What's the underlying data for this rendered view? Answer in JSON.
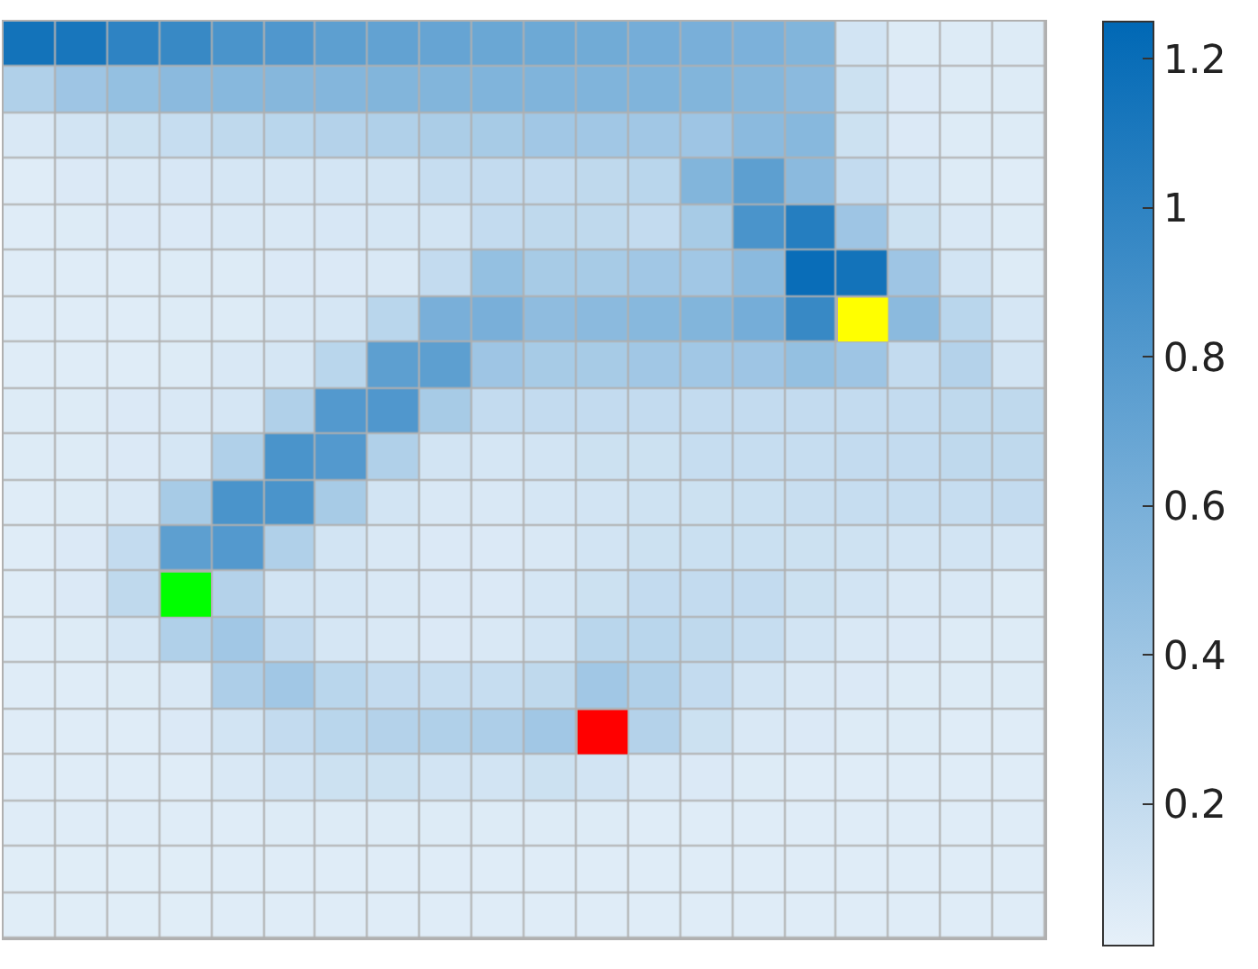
{
  "chart_data": {
    "type": "heatmap",
    "categories": [
      null,
      null,
      null,
      null,
      null,
      null,
      null,
      null,
      null,
      null,
      null,
      null,
      null,
      null,
      null,
      null,
      null,
      null,
      null,
      null
    ],
    "y_categories": [
      null,
      null,
      null,
      null,
      null,
      null,
      null,
      null,
      null,
      null,
      null,
      null,
      null,
      null,
      null,
      null,
      null,
      null,
      null,
      null
    ],
    "clim": [
      0.01,
      1.25
    ],
    "cticks": [
      0.2,
      0.4,
      0.6,
      0.8,
      1,
      1.2
    ],
    "cells": [
      [
        1.15,
        1.12,
        1.0,
        0.95,
        0.85,
        0.82,
        0.75,
        0.72,
        0.7,
        0.68,
        0.66,
        0.64,
        0.62,
        0.6,
        0.58,
        0.55,
        0.12,
        0.06,
        0.06,
        0.06
      ],
      [
        0.3,
        0.4,
        0.45,
        0.5,
        0.52,
        0.53,
        0.54,
        0.55,
        0.55,
        0.56,
        0.56,
        0.56,
        0.56,
        0.55,
        0.53,
        0.5,
        0.15,
        0.07,
        0.06,
        0.06
      ],
      [
        0.08,
        0.12,
        0.15,
        0.18,
        0.22,
        0.25,
        0.28,
        0.3,
        0.33,
        0.35,
        0.38,
        0.38,
        0.38,
        0.4,
        0.5,
        0.52,
        0.15,
        0.07,
        0.06,
        0.06
      ],
      [
        0.05,
        0.07,
        0.08,
        0.09,
        0.1,
        0.1,
        0.11,
        0.12,
        0.18,
        0.2,
        0.2,
        0.22,
        0.25,
        0.55,
        0.75,
        0.5,
        0.2,
        0.1,
        0.06,
        0.05
      ],
      [
        0.05,
        0.06,
        0.07,
        0.07,
        0.08,
        0.08,
        0.09,
        0.1,
        0.12,
        0.2,
        0.22,
        0.22,
        0.2,
        0.35,
        0.85,
        1.05,
        0.4,
        0.15,
        0.08,
        0.06
      ],
      [
        0.05,
        0.05,
        0.05,
        0.06,
        0.06,
        0.07,
        0.07,
        0.08,
        0.2,
        0.45,
        0.35,
        0.35,
        0.38,
        0.38,
        0.5,
        1.2,
        1.15,
        0.4,
        0.12,
        0.06
      ],
      [
        0.05,
        0.05,
        0.05,
        0.06,
        0.06,
        0.08,
        0.1,
        0.25,
        0.6,
        0.6,
        0.48,
        0.5,
        0.52,
        0.55,
        0.62,
        0.95,
        null,
        0.5,
        0.25,
        0.1
      ],
      [
        0.05,
        0.05,
        0.05,
        0.06,
        0.08,
        0.1,
        0.25,
        0.75,
        0.75,
        0.4,
        0.35,
        0.35,
        0.38,
        0.38,
        0.4,
        0.45,
        0.4,
        0.2,
        0.28,
        0.12
      ],
      [
        0.06,
        0.06,
        0.07,
        0.08,
        0.1,
        0.3,
        0.8,
        0.82,
        0.35,
        0.2,
        0.2,
        0.2,
        0.2,
        0.2,
        0.2,
        0.2,
        0.2,
        0.2,
        0.22,
        0.22
      ],
      [
        0.06,
        0.06,
        0.07,
        0.1,
        0.3,
        0.85,
        0.8,
        0.3,
        0.12,
        0.1,
        0.12,
        0.15,
        0.15,
        0.18,
        0.18,
        0.18,
        0.2,
        0.2,
        0.22,
        0.22
      ],
      [
        0.05,
        0.06,
        0.08,
        0.35,
        0.85,
        0.85,
        0.35,
        0.12,
        0.08,
        0.08,
        0.1,
        0.12,
        0.14,
        0.15,
        0.16,
        0.17,
        0.18,
        0.18,
        0.18,
        0.2
      ],
      [
        0.05,
        0.07,
        0.2,
        0.75,
        0.8,
        0.3,
        0.12,
        0.08,
        0.07,
        0.07,
        0.08,
        0.12,
        0.15,
        0.16,
        0.16,
        0.15,
        0.14,
        0.12,
        0.12,
        0.1
      ],
      [
        0.05,
        0.07,
        0.22,
        null,
        0.28,
        0.12,
        0.1,
        0.08,
        0.07,
        0.07,
        0.1,
        0.15,
        0.2,
        0.2,
        0.2,
        0.15,
        0.12,
        0.08,
        0.08,
        0.06
      ],
      [
        0.05,
        0.06,
        0.1,
        0.3,
        0.38,
        0.2,
        0.1,
        0.08,
        0.07,
        0.08,
        0.12,
        0.25,
        0.25,
        0.22,
        0.18,
        0.12,
        0.08,
        0.07,
        0.06,
        0.06
      ],
      [
        0.05,
        0.05,
        0.06,
        0.08,
        0.32,
        0.38,
        0.25,
        0.2,
        0.18,
        0.18,
        0.22,
        0.38,
        0.3,
        0.2,
        0.12,
        0.08,
        0.07,
        0.06,
        0.06,
        0.06
      ],
      [
        0.05,
        0.05,
        0.05,
        0.07,
        0.12,
        0.2,
        0.25,
        0.28,
        0.3,
        0.32,
        0.38,
        null,
        0.28,
        0.15,
        0.08,
        0.07,
        0.06,
        0.06,
        0.05,
        0.05
      ],
      [
        0.05,
        0.05,
        0.05,
        0.05,
        0.08,
        0.12,
        0.15,
        0.15,
        0.12,
        0.12,
        0.15,
        0.12,
        0.08,
        0.07,
        0.06,
        0.05,
        0.05,
        0.05,
        0.05,
        0.05
      ],
      [
        0.05,
        0.05,
        0.05,
        0.05,
        0.05,
        0.06,
        0.06,
        0.06,
        0.06,
        0.06,
        0.06,
        0.06,
        0.05,
        0.05,
        0.05,
        0.05,
        0.05,
        0.05,
        0.05,
        0.05
      ],
      [
        0.04,
        0.04,
        0.04,
        0.04,
        0.05,
        0.05,
        0.05,
        0.05,
        0.05,
        0.05,
        0.05,
        0.05,
        0.05,
        0.05,
        0.05,
        0.05,
        0.05,
        0.05,
        0.05,
        0.05
      ],
      [
        0.04,
        0.04,
        0.04,
        0.04,
        0.05,
        0.05,
        0.05,
        0.05,
        0.05,
        0.05,
        0.05,
        0.05,
        0.05,
        0.05,
        0.05,
        0.05,
        0.05,
        0.05,
        0.05,
        0.05
      ]
    ]
  }
}
